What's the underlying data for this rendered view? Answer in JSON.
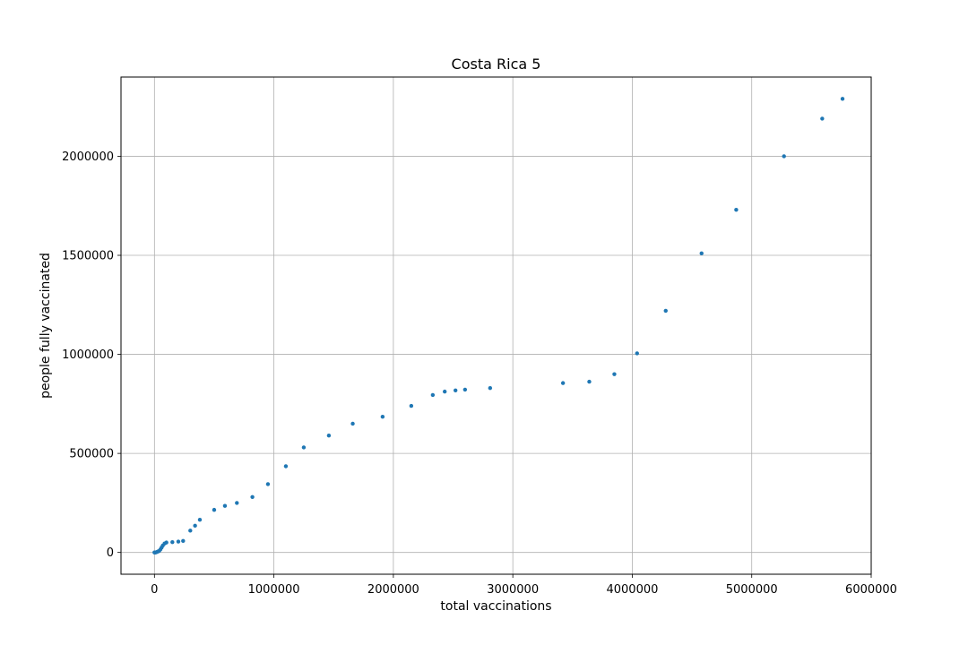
{
  "chart_data": {
    "type": "scatter",
    "title": "Costa Rica 5",
    "xlabel": "total vaccinations",
    "ylabel": "people fully vaccinated",
    "xlim": [
      -280000,
      6000000
    ],
    "ylim": [
      -110000,
      2400000
    ],
    "xticks": [
      0,
      1000000,
      2000000,
      3000000,
      4000000,
      5000000,
      6000000
    ],
    "yticks": [
      0,
      500000,
      1000000,
      1500000,
      2000000
    ],
    "grid": true,
    "colors": {
      "marker": "#1f77b4",
      "grid": "#b0b0b0"
    },
    "series": [
      {
        "x": [
          0,
          5000,
          10000,
          20000,
          30000,
          40000,
          50000,
          60000,
          70000,
          85000,
          100000,
          150000,
          200000,
          240000,
          300000,
          340000,
          380000,
          500000,
          590000,
          690000,
          820000,
          950000,
          1100000,
          1250000,
          1460000,
          1660000,
          1910000,
          2150000,
          2330000,
          2430000,
          2520000,
          2600000,
          2810000,
          3420000,
          3640000,
          3850000,
          4040000,
          4280000,
          4580000,
          4870000,
          5270000,
          5590000,
          5760000
        ],
        "y": [
          0,
          0,
          0,
          2000,
          5000,
          8000,
          15000,
          25000,
          35000,
          45000,
          50000,
          52000,
          55000,
          58000,
          110000,
          135000,
          165000,
          215000,
          235000,
          250000,
          280000,
          345000,
          435000,
          530000,
          590000,
          650000,
          685000,
          740000,
          795000,
          812000,
          818000,
          822000,
          830000,
          855000,
          862000,
          900000,
          1005000,
          1220000,
          1510000,
          1730000,
          2000000,
          2190000,
          2290000
        ]
      }
    ]
  }
}
